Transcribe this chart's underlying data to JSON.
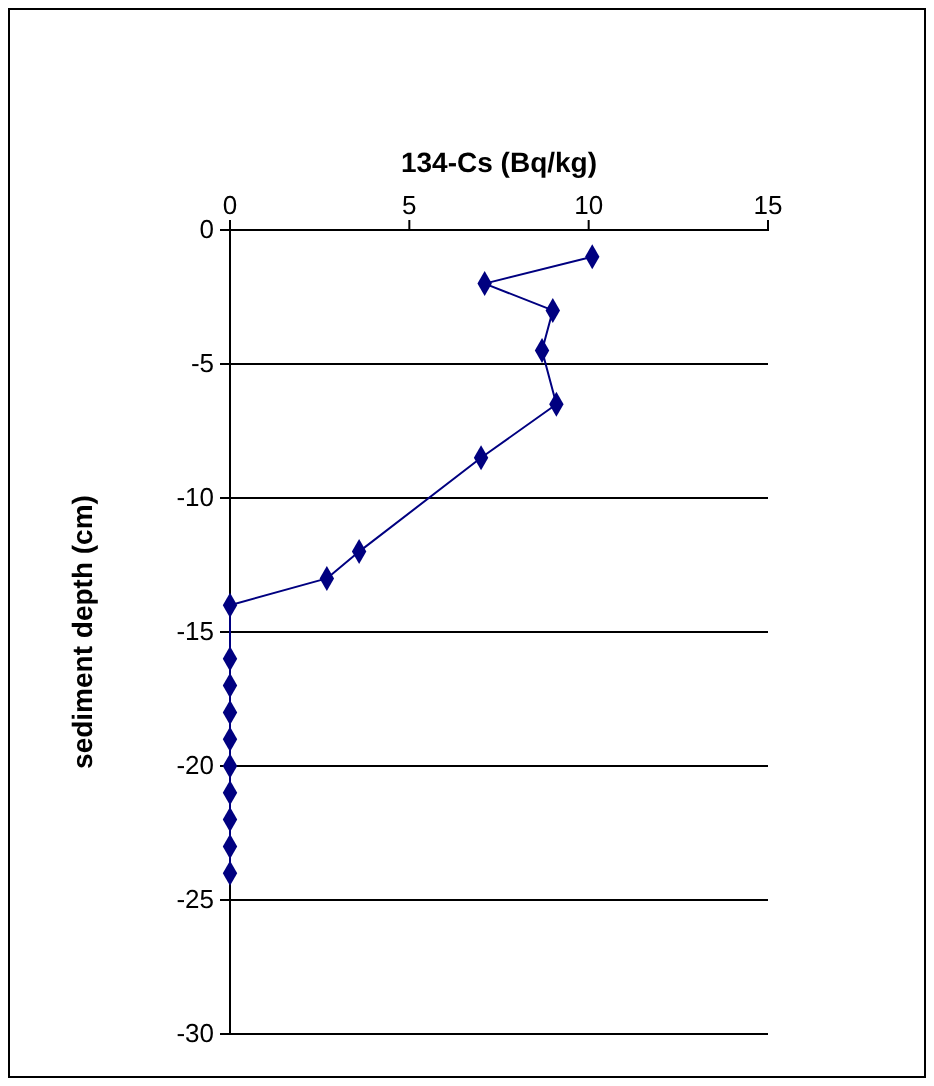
{
  "chart_data": {
    "type": "line",
    "xlabel": "134-Cs (Bq/kg)",
    "ylabel": "sediment depth (cm)",
    "xlim": [
      0,
      15
    ],
    "xticks": [
      0,
      5,
      10,
      15
    ],
    "ylim": [
      -30,
      0
    ],
    "yticks": [
      0,
      -5,
      -10,
      -15,
      -20,
      -25,
      -30
    ],
    "grid": "y",
    "marker": "diamond",
    "line_style": "solid",
    "series": [
      {
        "color": "#000080",
        "x": [
          10.1,
          7.1,
          9,
          8.7,
          9.1,
          7,
          3.6,
          2.7,
          0,
          0,
          0,
          0,
          0,
          0,
          0,
          0,
          0,
          0
        ],
        "values": [
          -1,
          -2,
          -3,
          -4.5,
          -6.5,
          -8.5,
          -12,
          -13,
          -14,
          -16,
          -17,
          -18,
          -19,
          -20,
          -21,
          -22,
          -23,
          -24
        ]
      }
    ]
  }
}
